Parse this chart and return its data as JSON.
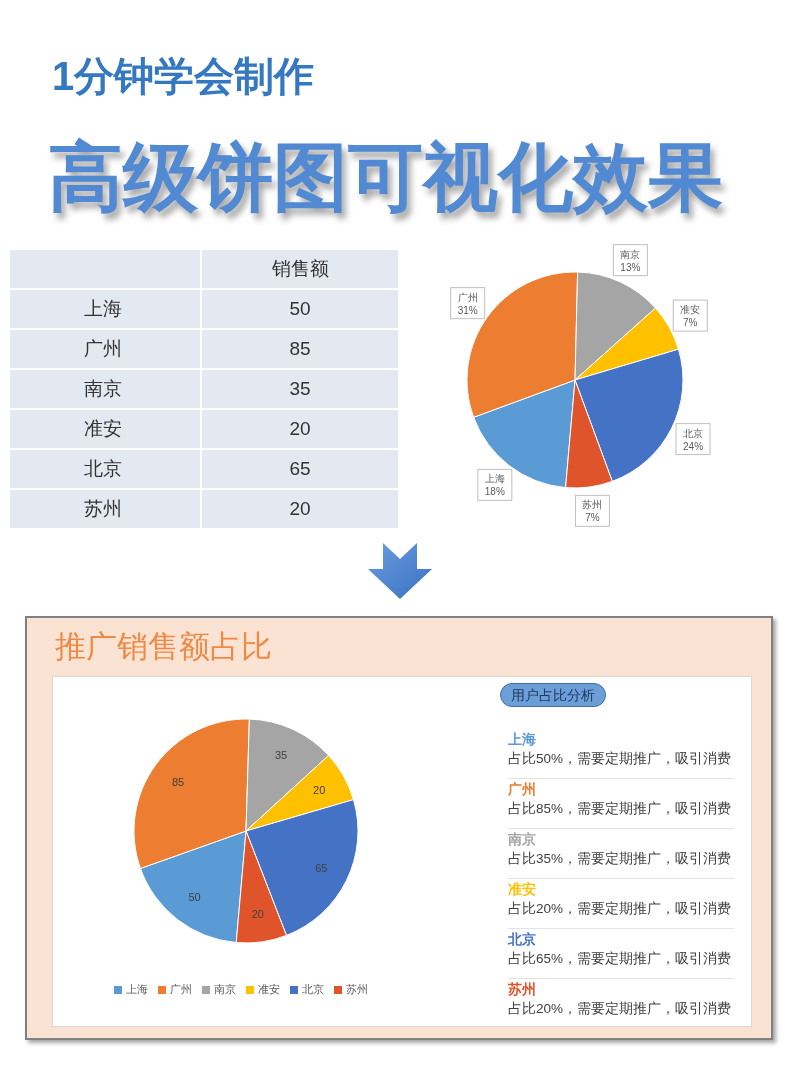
{
  "chart_data": [
    {
      "type": "other",
      "title": "1分钟学会制作",
      "subtitle": "高级饼图可视化效果",
      "ylabel": "销售额",
      "categories": [
        "上海",
        "广州",
        "南京",
        "准安",
        "北京",
        "苏州"
      ],
      "values": [
        50,
        85,
        35,
        20,
        65,
        20
      ],
      "data_labels": true
    },
    {
      "type": "pie",
      "categories": [
        "上海",
        "广州",
        "南京",
        "准安",
        "北京",
        "苏州"
      ],
      "values": [
        18,
        31,
        13,
        7,
        24,
        7
      ],
      "colors": [
        "#5b9bd5",
        "#ed7d31",
        "#a5a5a5",
        "#ffc000",
        "#4472c4",
        "#e0542c"
      ],
      "value_labels": [
        "18%",
        "31%",
        "13%",
        "7%",
        "24%",
        "7%"
      ]
    },
    {
      "type": "pie",
      "title": "推广销售额占比",
      "categories": [
        "上海",
        "广州",
        "南京",
        "准安",
        "北京",
        "苏州"
      ],
      "values": [
        50,
        85,
        35,
        20,
        65,
        20
      ],
      "colors": [
        "#5b9bd5",
        "#ed7d31",
        "#a5a5a5",
        "#ffc000",
        "#4472c4",
        "#e0542c"
      ],
      "data_labels": true,
      "legend": "bottom"
    },
    {
      "type": "other",
      "title": "用户占比分析",
      "annotations": [
        "上海",
        "占比50%，需要定期推广，吸引消费",
        "广州",
        "占比85%，需要定期推广，吸引消费",
        "南京",
        "占比35%，需要定期推广，吸引消费",
        "准安",
        "占比20%，需要定期推广，吸引消费",
        "北京",
        "占比65%，需要定期推广，吸引消费",
        "苏州",
        "占比20%，需要定期推广，吸引消费"
      ]
    }
  ]
}
